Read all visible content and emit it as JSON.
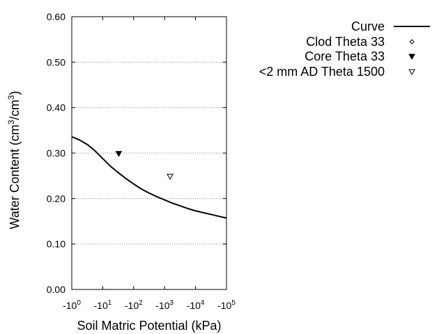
{
  "chart_data": {
    "type": "scatter",
    "title": "",
    "xlabel": "Soil Matric Potential (kPa)",
    "ylabel_main": "Water Content (cm",
    "ylabel_sup1": "3",
    "ylabel_mid": "/cm",
    "ylabel_sup2": "3",
    "ylabel_end": ")",
    "x_scale": "log",
    "x_sign": "negative",
    "xlim": [
      1,
      100000
    ],
    "ylim": [
      0,
      0.6
    ],
    "x_ticks": [
      {
        "value": 1,
        "base": "-10",
        "exp": "0"
      },
      {
        "value": 10,
        "base": "-10",
        "exp": "1"
      },
      {
        "value": 100,
        "base": "-10",
        "exp": "2"
      },
      {
        "value": 1000,
        "base": "-10",
        "exp": "3"
      },
      {
        "value": 10000,
        "base": "-10",
        "exp": "4"
      },
      {
        "value": 100000,
        "base": "-10",
        "exp": "5"
      }
    ],
    "y_ticks": [
      {
        "value": 0.0,
        "label": "0.00"
      },
      {
        "value": 0.1,
        "label": "0.10"
      },
      {
        "value": 0.2,
        "label": "0.20"
      },
      {
        "value": 0.3,
        "label": "0.30"
      },
      {
        "value": 0.4,
        "label": "0.40"
      },
      {
        "value": 0.5,
        "label": "0.50"
      },
      {
        "value": 0.6,
        "label": "0.60"
      }
    ],
    "grid": "horizontal-dotted",
    "legend_position": "top-right",
    "series": [
      {
        "name": "Curve",
        "kind": "line",
        "color": "#000000",
        "x": [
          1,
          1.78,
          3.16,
          5.62,
          10,
          17.8,
          31.6,
          56.2,
          100,
          178,
          316,
          562,
          1000,
          1780,
          3160,
          5620,
          10000,
          17800,
          31600,
          56200,
          100000
        ],
        "y": [
          0.336,
          0.329,
          0.319,
          0.305,
          0.288,
          0.271,
          0.257,
          0.244,
          0.232,
          0.221,
          0.212,
          0.204,
          0.197,
          0.19,
          0.184,
          0.178,
          0.173,
          0.169,
          0.165,
          0.161,
          0.157
        ]
      },
      {
        "name": "Clod Theta 33",
        "kind": "points",
        "marker": "diamond-open",
        "x": [],
        "y": []
      },
      {
        "name": "Core Theta 33",
        "kind": "points",
        "marker": "triangle-down-filled",
        "x": [
          33
        ],
        "y": [
          0.299
        ]
      },
      {
        "name": "<2 mm AD Theta 1500",
        "kind": "points",
        "marker": "triangle-down-open",
        "x": [
          1500
        ],
        "y": [
          0.249
        ]
      }
    ]
  }
}
